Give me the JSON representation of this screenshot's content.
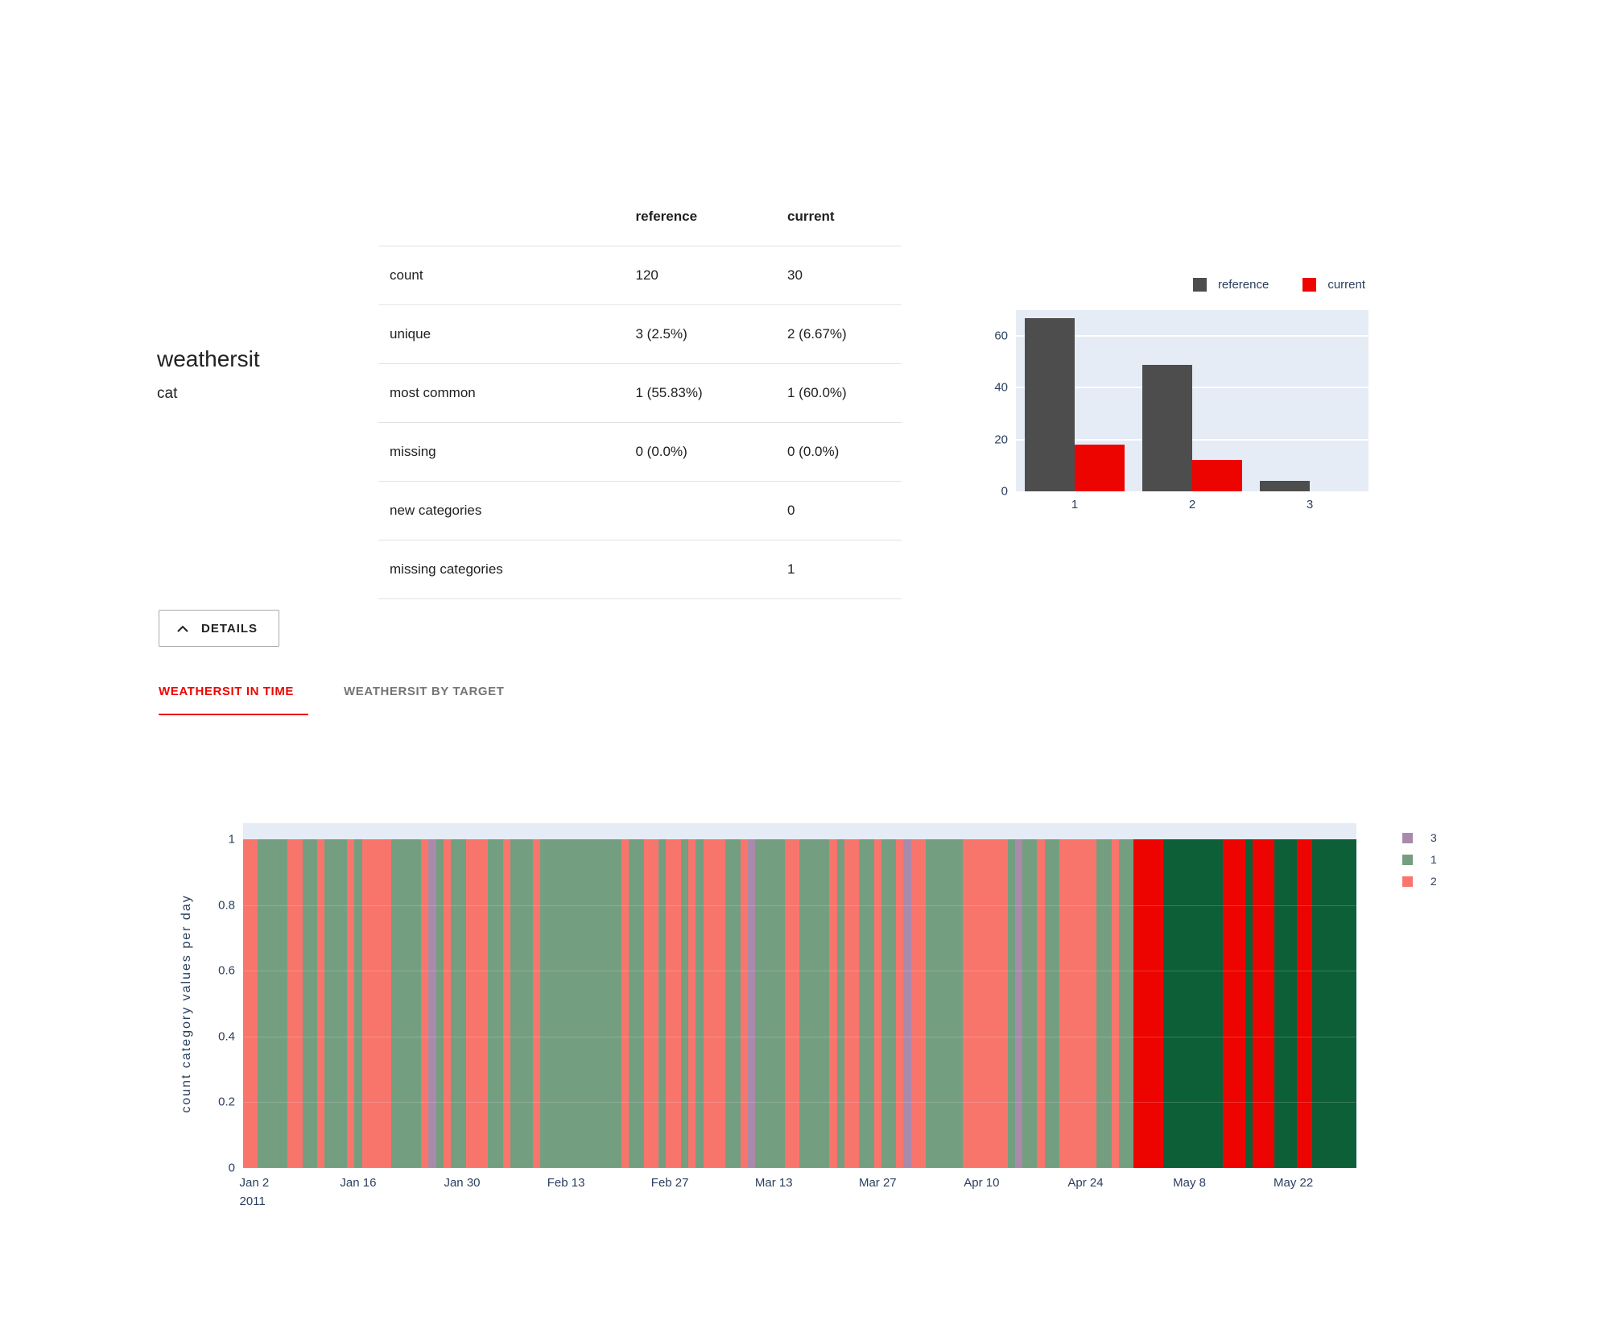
{
  "feature": {
    "name": "weathersit",
    "type": "cat"
  },
  "stats_table": {
    "columns": [
      "reference",
      "current"
    ],
    "rows": [
      {
        "label": "count",
        "reference": "120",
        "current": "30"
      },
      {
        "label": "unique",
        "reference": "3 (2.5%)",
        "current": "2 (6.67%)"
      },
      {
        "label": "most common",
        "reference": "1 (55.83%)",
        "current": "1 (60.0%)"
      },
      {
        "label": "missing",
        "reference": "0 (0.0%)",
        "current": "0 (0.0%)"
      },
      {
        "label": "new categories",
        "reference": "",
        "current": "0"
      },
      {
        "label": "missing categories",
        "reference": "",
        "current": "1"
      }
    ]
  },
  "details_button": {
    "label": "DETAILS"
  },
  "tabs": [
    {
      "label": "WEATHERSIT IN TIME",
      "active": true
    },
    {
      "label": "WEATHERSIT BY TARGET",
      "active": false
    }
  ],
  "colors": {
    "brand_red": "#ed0400",
    "reference_gray": "#4d4d4d",
    "plot_background": "#e5ecf6",
    "chart_text": "#2a3f5f",
    "muted_category_1": "#749e80",
    "muted_category_2": "#f8756c",
    "muted_category_3": "#a98aab",
    "current_category_1": "#0d5f38",
    "current_category_2": "#ed0400",
    "inactive_tab_gray": "#757575"
  },
  "chart_data": [
    {
      "type": "bar",
      "title": "weathersit distribution: reference vs current",
      "categories": [
        "1",
        "2",
        "3"
      ],
      "series": [
        {
          "name": "reference",
          "color": "#4d4d4d",
          "values": [
            67,
            49,
            4
          ]
        },
        {
          "name": "current",
          "color": "#ed0400",
          "values": [
            18,
            12,
            0
          ]
        }
      ],
      "ylim": [
        0,
        70
      ],
      "yticks": [
        0,
        20,
        40,
        60
      ],
      "legend_position": "top-right",
      "grid": true
    },
    {
      "type": "bar",
      "subtype": "daily-category-timeline",
      "title": "weathersit in time",
      "ylabel": "count category values per day",
      "ylim": [
        0,
        1
      ],
      "yticks": [
        0,
        0.2,
        0.4,
        0.6,
        0.8,
        1
      ],
      "bar_value_per_day": 1,
      "legend": [
        {
          "label": "3",
          "color": "#a98aab"
        },
        {
          "label": "1",
          "color": "#749e80"
        },
        {
          "label": "2",
          "color": "#f8756c"
        }
      ],
      "current_colors": {
        "1": "#0d5f38",
        "2": "#ed0400"
      },
      "reference_days": 120,
      "current_days": 30,
      "x_start_label": "Jan 2 2011",
      "xticks": [
        {
          "label": "Jan 2",
          "sublabel": "2011",
          "day": 1
        },
        {
          "label": "Jan 16",
          "day": 15
        },
        {
          "label": "Jan 30",
          "day": 29
        },
        {
          "label": "Feb 13",
          "day": 43
        },
        {
          "label": "Feb 27",
          "day": 57
        },
        {
          "label": "Mar 13",
          "day": 71
        },
        {
          "label": "Mar 27",
          "day": 85
        },
        {
          "label": "Apr 10",
          "day": 99
        },
        {
          "label": "Apr 24",
          "day": 113
        },
        {
          "label": "May 8",
          "day": 127
        },
        {
          "label": "May 22",
          "day": 141
        }
      ],
      "values": [
        2,
        2,
        1,
        1,
        1,
        1,
        2,
        2,
        1,
        1,
        2,
        1,
        1,
        1,
        2,
        1,
        2,
        2,
        2,
        2,
        1,
        1,
        1,
        1,
        2,
        3,
        1,
        2,
        1,
        1,
        2,
        2,
        2,
        1,
        1,
        2,
        1,
        1,
        1,
        2,
        1,
        1,
        1,
        1,
        1,
        1,
        1,
        1,
        1,
        1,
        1,
        2,
        1,
        1,
        2,
        2,
        1,
        2,
        2,
        1,
        2,
        1,
        2,
        2,
        2,
        1,
        1,
        2,
        3,
        1,
        1,
        1,
        1,
        2,
        2,
        1,
        1,
        1,
        1,
        2,
        1,
        2,
        2,
        1,
        1,
        2,
        1,
        1,
        2,
        3,
        2,
        2,
        1,
        1,
        1,
        1,
        1,
        2,
        2,
        2,
        2,
        2,
        2,
        1,
        3,
        1,
        1,
        2,
        1,
        1,
        2,
        2,
        2,
        2,
        2,
        1,
        1,
        2,
        1,
        1,
        2,
        2,
        2,
        2,
        1,
        1,
        1,
        1,
        1,
        1,
        1,
        1,
        2,
        2,
        2,
        1,
        2,
        2,
        2,
        1,
        1,
        1,
        2,
        2,
        1,
        1,
        1,
        1,
        1,
        1
      ]
    }
  ]
}
